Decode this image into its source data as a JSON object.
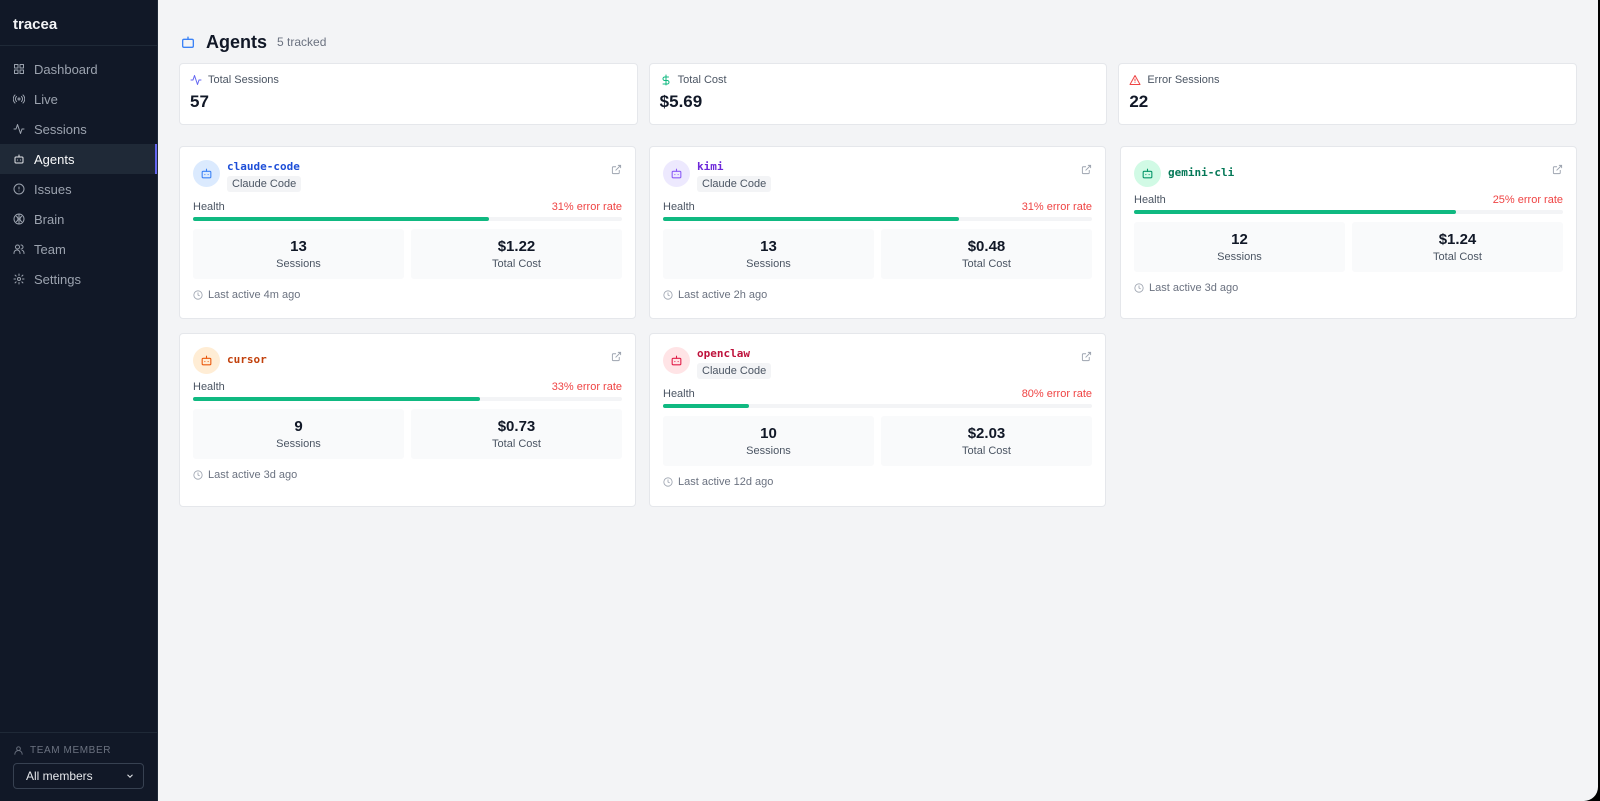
{
  "app": {
    "brand": "tracea"
  },
  "sidebar": {
    "items": [
      {
        "label": "Dashboard",
        "icon": "grid-icon"
      },
      {
        "label": "Live",
        "icon": "radio-icon"
      },
      {
        "label": "Sessions",
        "icon": "activity-icon"
      },
      {
        "label": "Agents",
        "icon": "bot-icon",
        "active": true
      },
      {
        "label": "Issues",
        "icon": "alert-circle-icon"
      },
      {
        "label": "Brain",
        "icon": "brain-icon"
      },
      {
        "label": "Team",
        "icon": "users-icon"
      },
      {
        "label": "Settings",
        "icon": "gear-icon"
      }
    ],
    "team_member_label": "TEAM MEMBER",
    "team_member_select": "All members"
  },
  "header": {
    "title": "Agents",
    "subtitle": "5 tracked"
  },
  "stats": [
    {
      "label": "Total Sessions",
      "value": "57",
      "icon": "activity-icon",
      "color": "#6366f1"
    },
    {
      "label": "Total Cost",
      "value": "$5.69",
      "icon": "dollar-icon",
      "color": "#10b981"
    },
    {
      "label": "Error Sessions",
      "value": "22",
      "icon": "warning-icon",
      "color": "#ef4444"
    }
  ],
  "common": {
    "health_label": "Health",
    "sessions_label": "Sessions",
    "cost_label": "Total Cost"
  },
  "agents": [
    {
      "name": "claude-code",
      "badge": "Claude Code",
      "error_rate": "31% error rate",
      "health": 0.69,
      "sessions": "13",
      "cost": "$1.22",
      "last_active": "Last active 4m ago",
      "name_color": "#1d4ed8",
      "avatar_bg": "#dbeafe",
      "avatar_color": "#3b82f6"
    },
    {
      "name": "kimi",
      "badge": "Claude Code",
      "error_rate": "31% error rate",
      "health": 0.69,
      "sessions": "13",
      "cost": "$0.48",
      "last_active": "Last active 2h ago",
      "name_color": "#6d28d9",
      "avatar_bg": "#ede9fe",
      "avatar_color": "#8b5cf6"
    },
    {
      "name": "gemini-cli",
      "badge": "",
      "error_rate": "25% error rate",
      "health": 0.75,
      "sessions": "12",
      "cost": "$1.24",
      "last_active": "Last active 3d ago",
      "name_color": "#047857",
      "avatar_bg": "#d1fae5",
      "avatar_color": "#059669"
    },
    {
      "name": "cursor",
      "badge": "",
      "error_rate": "33% error rate",
      "health": 0.67,
      "sessions": "9",
      "cost": "$0.73",
      "last_active": "Last active 3d ago",
      "name_color": "#c2410c",
      "avatar_bg": "#ffedd5",
      "avatar_color": "#ea580c"
    },
    {
      "name": "openclaw",
      "badge": "Claude Code",
      "error_rate": "80% error rate",
      "health": 0.2,
      "sessions": "10",
      "cost": "$2.03",
      "last_active": "Last active 12d ago",
      "name_color": "#be123c",
      "avatar_bg": "#ffe4e6",
      "avatar_color": "#e11d48"
    }
  ]
}
